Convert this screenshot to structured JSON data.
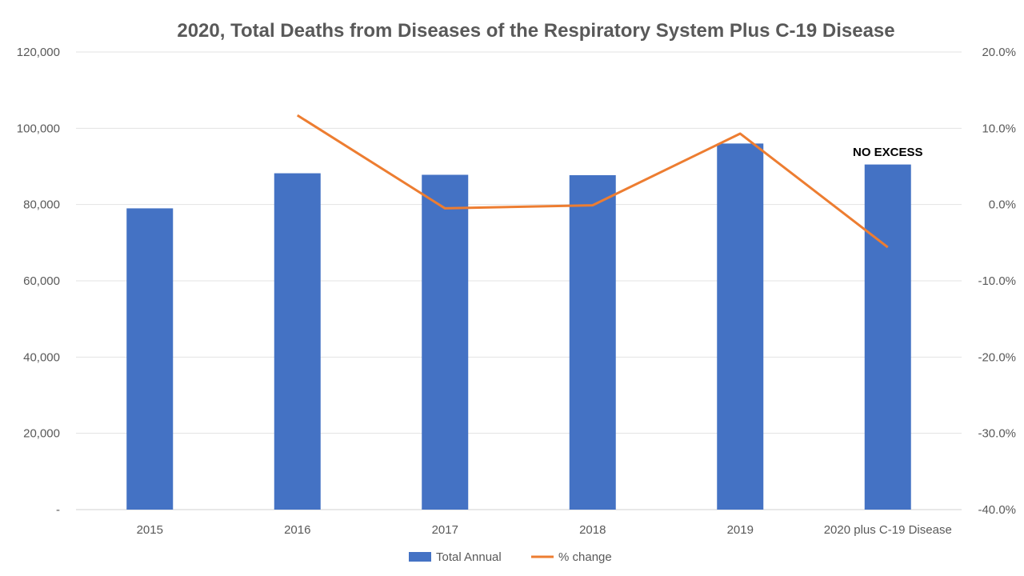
{
  "chart_data": {
    "type": "bar",
    "title": "2020, Total Deaths from Diseases of the Respiratory System Plus C-19 Disease",
    "categories": [
      "2015",
      "2016",
      "2017",
      "2018",
      "2019",
      "2020 plus C-19 Disease"
    ],
    "series": [
      {
        "name": "Total Annual",
        "type": "bar",
        "axis": "left",
        "color": "#4472C4",
        "values": [
          79000,
          88200,
          87800,
          87700,
          96000,
          90500
        ]
      },
      {
        "name": "% change",
        "type": "line",
        "axis": "right",
        "color": "#ED7D31",
        "values": [
          null,
          11.7,
          -0.5,
          -0.1,
          9.3,
          -5.6
        ]
      }
    ],
    "y_left": {
      "min": 0,
      "max": 120000,
      "tick_labels": [
        "-",
        "20,000",
        "40,000",
        "60,000",
        "80,000",
        "100,000",
        "120,000"
      ]
    },
    "y_right": {
      "min": -40,
      "max": 20,
      "tick_labels": [
        "-40.0%",
        "-30.0%",
        "-20.0%",
        "-10.0%",
        "0.0%",
        "10.0%",
        "20.0%"
      ]
    },
    "grid": true,
    "legend": "bottom",
    "annotations": [
      {
        "text": "NO EXCESS",
        "category": "2020 plus C-19 Disease"
      }
    ]
  }
}
